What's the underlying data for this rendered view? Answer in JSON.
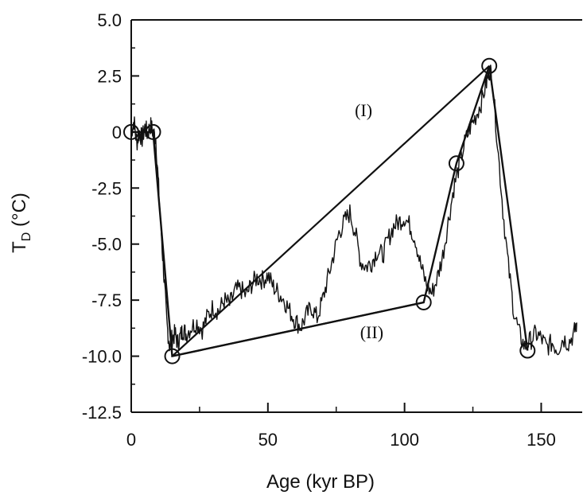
{
  "chart_data": {
    "type": "line",
    "xlabel": "Age (kyr BP)",
    "ylabel_main": "T",
    "ylabel_sub": "D",
    "ylabel_unit": " (°C)",
    "xlim": [
      0,
      165
    ],
    "ylim": [
      -12.5,
      5.0
    ],
    "xticks": [
      0,
      50,
      100,
      150
    ],
    "yticks": [
      5.0,
      2.5,
      0,
      -2.5,
      -5.0,
      -7.5,
      -10.0,
      -12.5
    ],
    "ytick_labels": [
      "5.0",
      "2.5",
      "0",
      "-2.5",
      "-5.0",
      "-7.5",
      "-10.0",
      "-12.5"
    ],
    "grid": false,
    "series": [
      {
        "values_x": [
          0,
          1,
          2,
          3,
          4,
          5,
          6,
          7,
          8,
          9,
          10,
          11,
          12,
          13,
          14,
          15,
          16,
          17,
          18,
          19,
          20,
          22,
          24,
          26,
          28,
          30,
          32,
          34,
          36,
          38,
          40,
          42,
          44,
          46,
          48,
          50,
          52,
          54,
          56,
          58,
          60,
          62,
          64,
          66,
          68,
          70,
          72,
          74,
          76,
          78,
          80,
          82,
          84,
          86,
          88,
          90,
          92,
          94,
          96,
          98,
          100,
          102,
          104,
          106,
          108,
          110,
          112,
          114,
          116,
          118,
          120,
          122,
          124,
          126,
          128,
          130,
          131,
          132,
          134,
          136,
          138,
          140,
          142,
          144,
          146,
          148,
          150,
          152,
          154,
          156,
          158,
          160,
          162,
          163
        ],
        "values_y": [
          0,
          0.5,
          -0.5,
          0,
          -0.3,
          0.2,
          -0.1,
          0.3,
          0,
          -0.3,
          -2.5,
          -4.5,
          -6.5,
          -8.5,
          -9.5,
          -9.2,
          -9.0,
          -9.4,
          -9.1,
          -8.8,
          -9.0,
          -8.7,
          -8.5,
          -8.8,
          -8.2,
          -7.8,
          -8.0,
          -7.5,
          -7.7,
          -7.1,
          -7.0,
          -7.3,
          -6.8,
          -6.5,
          -6.6,
          -6.4,
          -6.9,
          -7.2,
          -7.5,
          -8.0,
          -8.4,
          -8.7,
          -8.2,
          -7.8,
          -8.3,
          -7.5,
          -6.5,
          -5.5,
          -4.5,
          -4.0,
          -3.6,
          -4.5,
          -5.8,
          -6.0,
          -5.8,
          -5.3,
          -5.5,
          -4.8,
          -4.2,
          -4.0,
          -3.8,
          -4.2,
          -4.8,
          -6.0,
          -6.8,
          -7.2,
          -6.5,
          -5.5,
          -4.0,
          -2.5,
          -1.5,
          -0.5,
          0.2,
          0.7,
          1.3,
          2.2,
          2.8,
          2.5,
          -0.5,
          -3.5,
          -6.0,
          -8.0,
          -9.0,
          -9.6,
          -9.3,
          -9.0,
          -9.2,
          -9.6,
          -9.4,
          -9.7,
          -9.2,
          -9.4,
          -9.0,
          -8.5
        ]
      }
    ],
    "circles": [
      {
        "x": 0,
        "y": 0
      },
      {
        "x": 8,
        "y": 0
      },
      {
        "x": 15,
        "y": -10.0
      },
      {
        "x": 107,
        "y": -7.6
      },
      {
        "x": 119,
        "y": -1.4
      },
      {
        "x": 131,
        "y": 2.95
      },
      {
        "x": 145,
        "y": -9.75
      }
    ],
    "trend_lines": [
      {
        "points": [
          [
            15,
            -10.0
          ],
          [
            131,
            2.95
          ]
        ],
        "label": "(I)",
        "label_at": [
          85,
          0.7
        ]
      },
      {
        "points": [
          [
            15,
            -10.0
          ],
          [
            107,
            -7.6
          ]
        ],
        "label": "(II)",
        "label_at": [
          88,
          -9.2
        ]
      }
    ],
    "connector_path": [
      [
        0,
        0
      ],
      [
        8,
        0
      ],
      [
        15,
        -10.0
      ],
      [
        107,
        -7.6
      ],
      [
        119,
        -1.4
      ],
      [
        131,
        2.95
      ],
      [
        145,
        -9.75
      ]
    ]
  }
}
